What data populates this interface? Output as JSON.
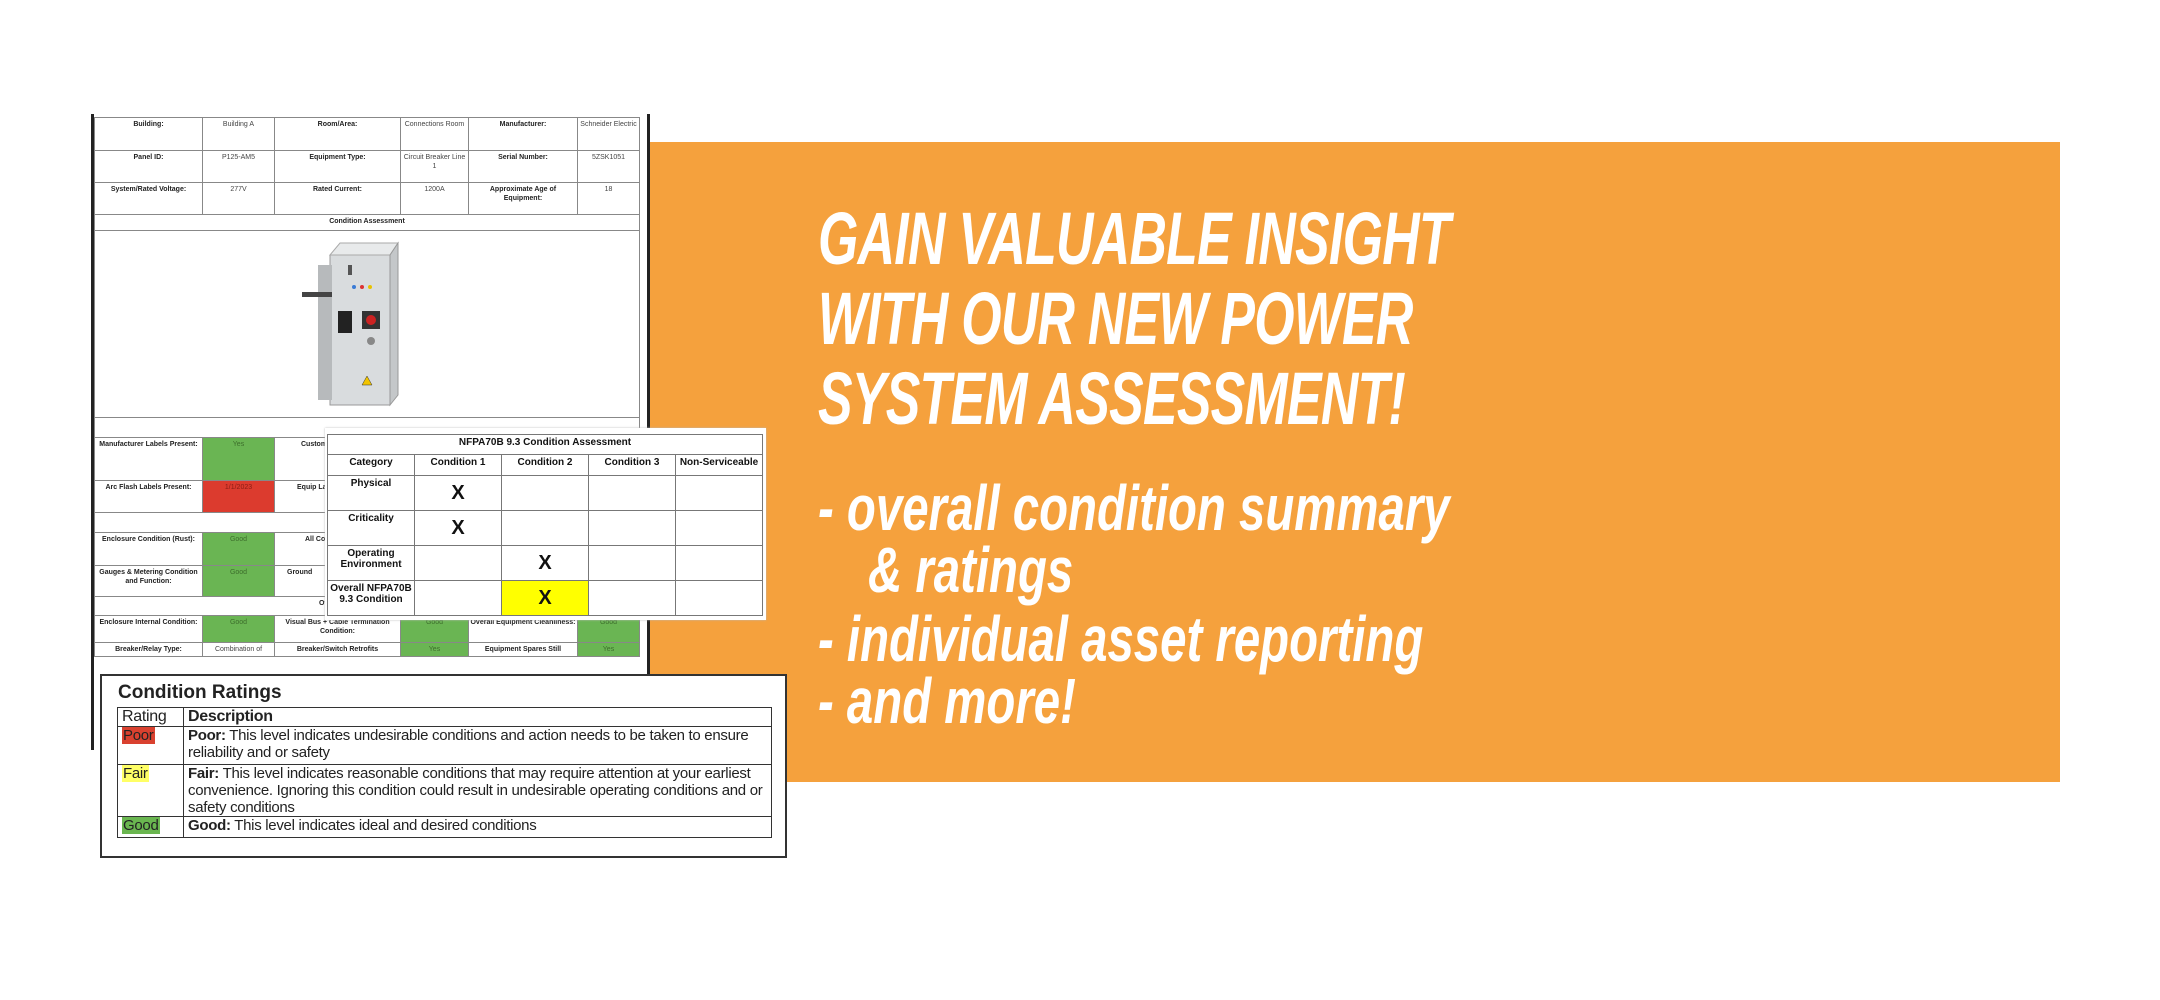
{
  "banner": {
    "background_color": "#F5A13D",
    "headline": [
      "GAIN VALUABLE INSIGHT",
      "WITH OUR NEW POWER",
      "SYSTEM ASSESSMENT!"
    ],
    "bullets": [
      "- overall condition summary",
      "  & ratings",
      "- individual asset reporting",
      "- and more!"
    ]
  },
  "report": {
    "info_rows": [
      [
        "Building:",
        "Building A",
        "Room/Area:",
        "Connections Room",
        "Manufacturer:",
        "Schneider Electric"
      ],
      [
        "Panel ID:",
        "P125-AM5",
        "Equipment Type:",
        "Circuit Breaker Line 1",
        "Serial Number:",
        "5ZSK1051"
      ],
      [
        "System/Rated Voltage:",
        "277V",
        "Rated Current:",
        "1200A",
        "Approximate Age of Equipment:",
        "18"
      ]
    ],
    "section_title": "Condition Assessment",
    "image": "switchgear-cabinet-photo",
    "labels_rows": [
      {
        "label": "Manufacturer Labels Present:",
        "value": "Yes",
        "status": "green",
        "label2": "Custom Lab"
      },
      {
        "label": "Arc Flash Labels Present:",
        "value": "1/1/2023",
        "status": "red",
        "label2": "Equip Label/"
      }
    ],
    "condition_rows": [
      {
        "label": "Enclosure Condition (Rust):",
        "value": "Good",
        "status": "green",
        "label2": "All Co"
      },
      {
        "label": "Gauges & Metering Condition and Function:",
        "value": "Good",
        "status": "green",
        "label2": "Ground"
      }
    ],
    "subsection_fragment": "Ov",
    "bottom_rows": [
      [
        "Enclosure Internal Condition:",
        "Good",
        "Visual Bus + Cable Termination Condition:",
        "Good",
        "Overall Equipment Cleanliness:",
        "Good"
      ],
      [
        "Breaker/Relay Type:",
        "Combination of",
        "Breaker/Switch Retrofits",
        "Yes",
        "Equipment Spares Still",
        "Yes"
      ]
    ],
    "colors": {
      "good": "#6AB553",
      "poor": "#DC3B2E"
    }
  },
  "nfpa": {
    "title": "NFPA70B 9.3 Condition Assessment",
    "headers": [
      "Category",
      "Condition 1",
      "Condition 2",
      "Condition 3",
      "Non-Serviceable"
    ],
    "rows": [
      {
        "category": "Physical",
        "marks": [
          "X",
          "",
          "",
          ""
        ]
      },
      {
        "category": "Criticality",
        "marks": [
          "X",
          "",
          "",
          ""
        ]
      },
      {
        "category": "Operating Environment",
        "marks": [
          "",
          "X",
          "",
          ""
        ]
      },
      {
        "category": "Overall NFPA70B 9.3 Condition",
        "marks": [
          "",
          "X",
          "",
          ""
        ]
      }
    ],
    "highlight_color": "#FFFF00"
  },
  "ratings": {
    "title": "Condition Ratings",
    "headers": [
      "Rating",
      "Description"
    ],
    "rows": [
      {
        "rating": "Poor",
        "color": "#D9412F",
        "term": "Poor:",
        "description": "This level indicates undesirable conditions and action needs to be taken to ensure reliability and or safety"
      },
      {
        "rating": "Fair",
        "color": "#FFFF66",
        "term": "Fair:",
        "description": "This level indicates reasonable conditions that may require attention at your earliest convenience. Ignoring this condition could result in undesirable operating conditions and or safety conditions"
      },
      {
        "rating": "Good",
        "color": "#6AB650",
        "term": "Good:",
        "description": "This level indicates ideal and desired conditions"
      }
    ]
  }
}
